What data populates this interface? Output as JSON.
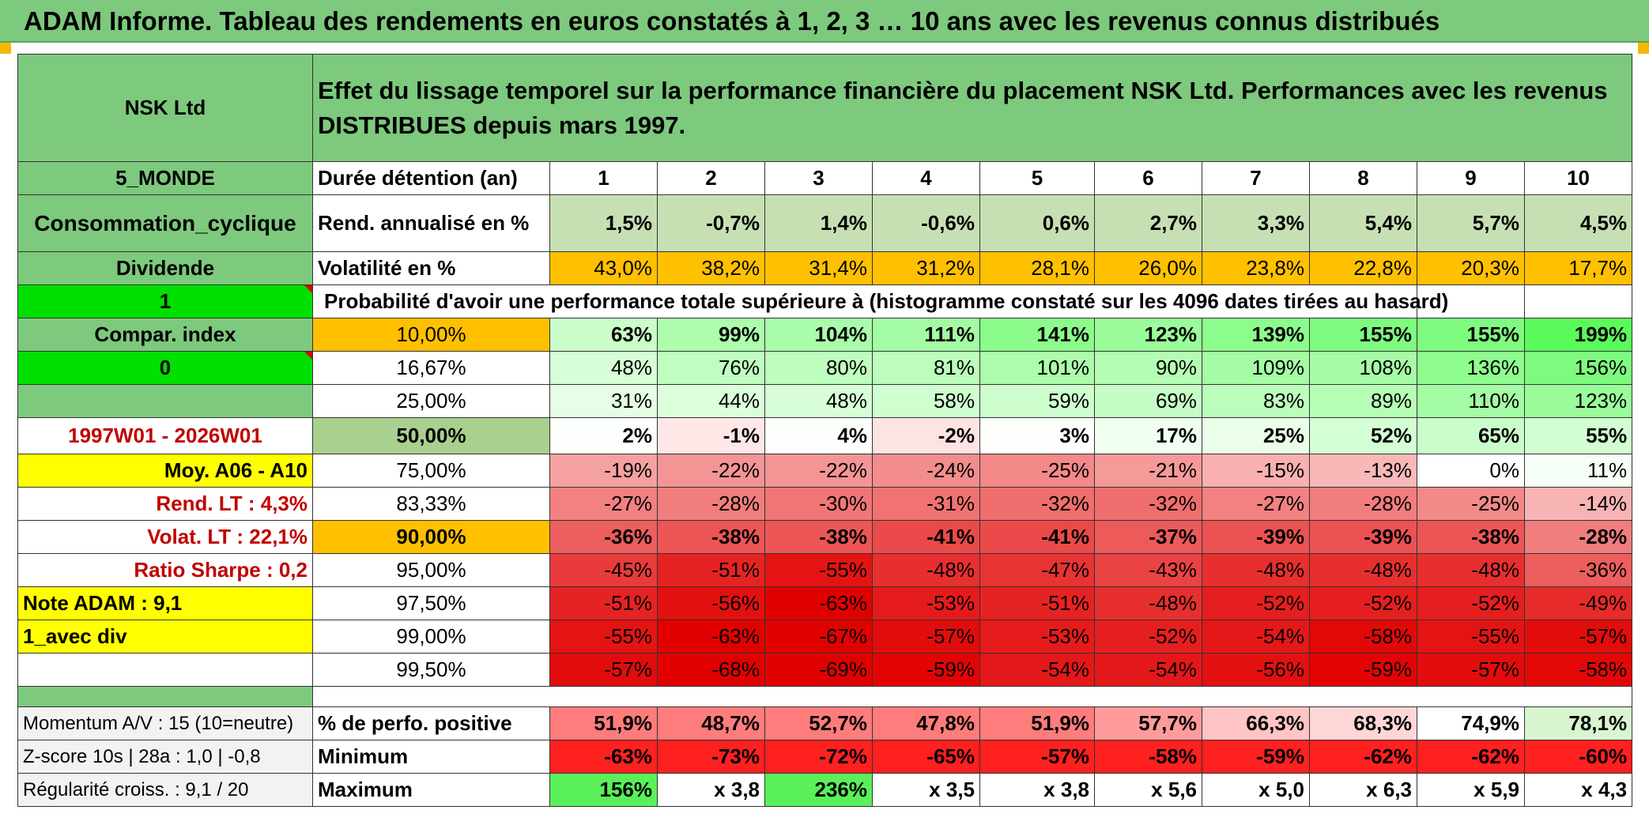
{
  "title": "ADAM Informe. Tableau des rendements en euros constatés à 1, 2, 3 … 10 ans avec les revenus connus distribués",
  "header": {
    "name": "NSK Ltd",
    "description": "Effet du lissage temporel sur la performance financière du placement NSK Ltd. Performances avec les revenus DISTRIBUES depuis mars 1997."
  },
  "left": {
    "zone": "5_MONDE",
    "sector": "Consommation_cyclique",
    "dividend": "Dividende",
    "one": "1",
    "compar": "Compar. index",
    "zero": "0",
    "period": "1997W01 - 2026W01",
    "moy": "Moy. A06 - A10",
    "rend_lt": "Rend. LT :   4,3%",
    "volat_lt": "Volat. LT :   22,1%",
    "sharpe": "Ratio Sharpe :    0,2",
    "note": "Note ADAM : 9,1",
    "avec_div": "1_avec div",
    "momentum": "Momentum A/V : 15 (10=neutre)",
    "zscore": "Z-score 10s | 28a : 1,0 | -0,8",
    "regularite": "Régularité croiss. : 9,1 / 20"
  },
  "labels": {
    "duree": "Durée détention (an)",
    "rend": "Rend. annualisé en %",
    "vol": "Volatilité en %",
    "proba": "Probabilité d'avoir une performance totale supérieure à (histogramme constaté sur les 4096 dates tirées au hasard)",
    "perfo_pos": "% de perfo. positive",
    "minimum": "Minimum",
    "maximum": "Maximum"
  },
  "years": [
    "1",
    "2",
    "3",
    "4",
    "5",
    "6",
    "7",
    "8",
    "9",
    "10"
  ],
  "rend": [
    "1,5%",
    "-0,7%",
    "1,4%",
    "-0,6%",
    "0,6%",
    "2,7%",
    "3,3%",
    "5,4%",
    "5,7%",
    "4,5%"
  ],
  "vol": [
    "43,0%",
    "38,2%",
    "31,4%",
    "31,2%",
    "28,1%",
    "26,0%",
    "23,8%",
    "22,8%",
    "20,3%",
    "17,7%"
  ],
  "quantiles": [
    {
      "q": "10,00%",
      "v": [
        "63%",
        "99%",
        "104%",
        "111%",
        "141%",
        "123%",
        "139%",
        "155%",
        "155%",
        "199%"
      ]
    },
    {
      "q": "16,67%",
      "v": [
        "48%",
        "76%",
        "80%",
        "81%",
        "101%",
        "90%",
        "109%",
        "108%",
        "136%",
        "156%"
      ]
    },
    {
      "q": "25,00%",
      "v": [
        "31%",
        "44%",
        "48%",
        "58%",
        "59%",
        "69%",
        "83%",
        "89%",
        "110%",
        "123%"
      ]
    },
    {
      "q": "50,00%",
      "v": [
        "2%",
        "-1%",
        "4%",
        "-2%",
        "3%",
        "17%",
        "25%",
        "52%",
        "65%",
        "55%"
      ]
    },
    {
      "q": "75,00%",
      "v": [
        "-19%",
        "-22%",
        "-22%",
        "-24%",
        "-25%",
        "-21%",
        "-15%",
        "-13%",
        "0%",
        "11%"
      ]
    },
    {
      "q": "83,33%",
      "v": [
        "-27%",
        "-28%",
        "-30%",
        "-31%",
        "-32%",
        "-32%",
        "-27%",
        "-28%",
        "-25%",
        "-14%"
      ]
    },
    {
      "q": "90,00%",
      "v": [
        "-36%",
        "-38%",
        "-38%",
        "-41%",
        "-41%",
        "-37%",
        "-39%",
        "-39%",
        "-38%",
        "-28%"
      ]
    },
    {
      "q": "95,00%",
      "v": [
        "-45%",
        "-51%",
        "-55%",
        "-48%",
        "-47%",
        "-43%",
        "-48%",
        "-48%",
        "-48%",
        "-36%"
      ]
    },
    {
      "q": "97,50%",
      "v": [
        "-51%",
        "-56%",
        "-63%",
        "-53%",
        "-51%",
        "-48%",
        "-52%",
        "-52%",
        "-52%",
        "-49%"
      ]
    },
    {
      "q": "99,00%",
      "v": [
        "-55%",
        "-63%",
        "-67%",
        "-57%",
        "-53%",
        "-52%",
        "-54%",
        "-58%",
        "-55%",
        "-57%"
      ]
    },
    {
      "q": "99,50%",
      "v": [
        "-57%",
        "-68%",
        "-69%",
        "-59%",
        "-54%",
        "-54%",
        "-56%",
        "-59%",
        "-57%",
        "-58%"
      ]
    }
  ],
  "perfo_pos": [
    "51,9%",
    "48,7%",
    "52,7%",
    "47,8%",
    "51,9%",
    "57,7%",
    "66,3%",
    "68,3%",
    "74,9%",
    "78,1%"
  ],
  "minimum": [
    "-63%",
    "-73%",
    "-72%",
    "-65%",
    "-57%",
    "-58%",
    "-59%",
    "-62%",
    "-62%",
    "-60%"
  ],
  "maximum": [
    "156%",
    "x 3,8",
    "236%",
    "x 3,5",
    "x 3,8",
    "x 5,6",
    "x 5,0",
    "x 6,3",
    "x 5,9",
    "x 4,3"
  ],
  "colors": {
    "header_green": "#7dc97d",
    "bright_green": "#00e000",
    "orange": "#ffc000",
    "yellow": "#ffff00",
    "red_text": "#c00000"
  }
}
